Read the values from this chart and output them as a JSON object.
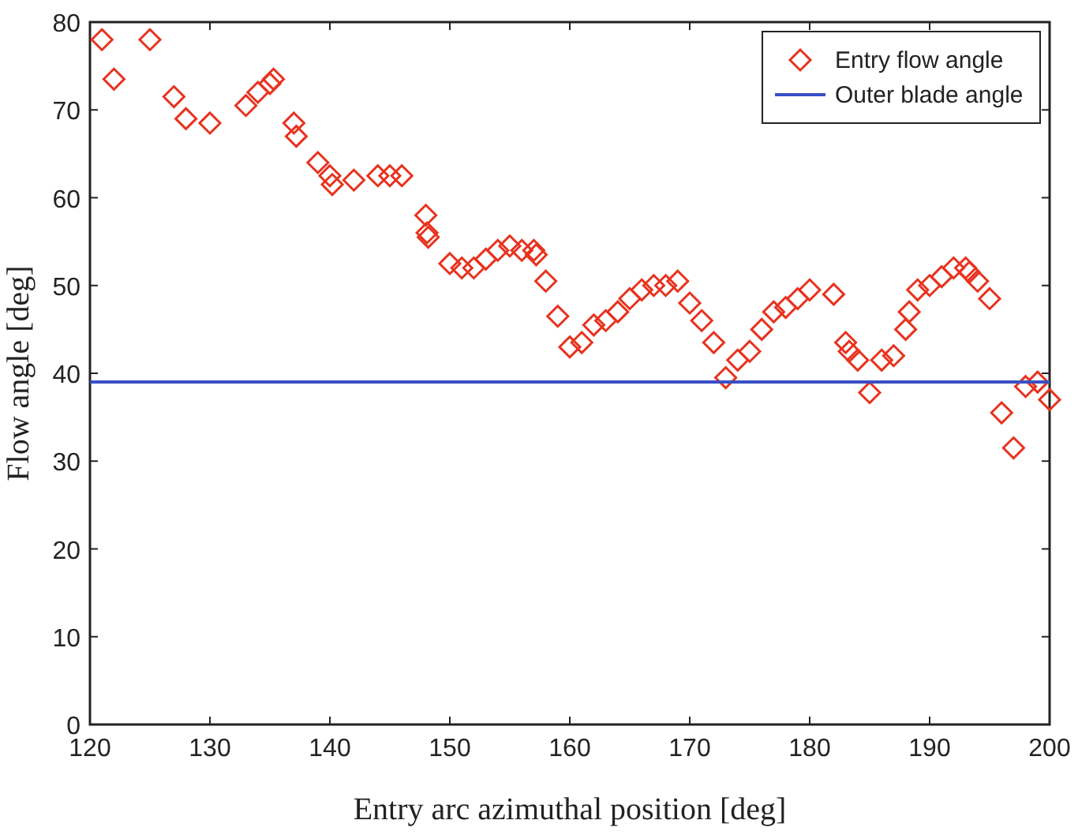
{
  "chart_data": {
    "type": "scatter",
    "xlabel": "Entry arc azimuthal position [deg]",
    "ylabel": "Flow angle [deg]",
    "xlim": [
      120,
      200
    ],
    "ylim": [
      0,
      80
    ],
    "xticks": [
      120,
      130,
      140,
      150,
      160,
      170,
      180,
      190,
      200
    ],
    "yticks": [
      0,
      10,
      20,
      30,
      40,
      50,
      60,
      70,
      80
    ],
    "marker": "diamond",
    "legend": "top right",
    "grid": false,
    "series": [
      {
        "name": "Entry flow angle",
        "color": "#e8321e",
        "x": [
          121,
          122,
          125,
          127,
          128,
          130,
          133,
          134,
          135,
          135.3,
          137,
          137.2,
          139,
          140,
          140.2,
          142,
          144,
          145,
          146,
          148,
          148.1,
          148.2,
          150,
          151,
          152,
          153,
          154,
          155,
          156,
          157,
          157.2,
          158,
          159,
          160,
          161,
          162,
          163,
          164,
          165,
          166,
          167,
          168,
          169,
          170,
          171,
          172,
          173,
          174,
          175,
          176,
          177,
          178,
          179,
          180,
          182,
          183,
          183.3,
          184,
          185,
          186,
          187,
          188,
          188.3,
          189,
          190,
          191,
          192,
          193,
          193.3,
          194,
          195,
          196,
          197,
          198,
          199,
          200
        ],
        "values": [
          78,
          73.5,
          78,
          71.5,
          69,
          68.5,
          70.5,
          72,
          73,
          73.5,
          68.5,
          67,
          64,
          62.5,
          61.5,
          62,
          62.5,
          62.5,
          62.5,
          58,
          56,
          55.5,
          52.5,
          52,
          52,
          53,
          54,
          54.5,
          54,
          54,
          53.5,
          50.5,
          46.5,
          43,
          43.5,
          45.5,
          46,
          47,
          48.5,
          49.5,
          50,
          50,
          50.5,
          48,
          46,
          43.5,
          39.5,
          41.5,
          42.5,
          45,
          47,
          47.5,
          48.5,
          49.5,
          49,
          43.5,
          42.5,
          41.5,
          37.8,
          41.5,
          42,
          45,
          47,
          49.5,
          50,
          51,
          52,
          52,
          51.5,
          50.5,
          48.5,
          35.5,
          31.5,
          38.5,
          39,
          37
        ]
      },
      {
        "name": "Outer blade angle",
        "type": "line",
        "color": "#3a4fc4",
        "marker": "none",
        "x": [
          120,
          200
        ],
        "values": [
          39,
          39
        ]
      }
    ]
  }
}
